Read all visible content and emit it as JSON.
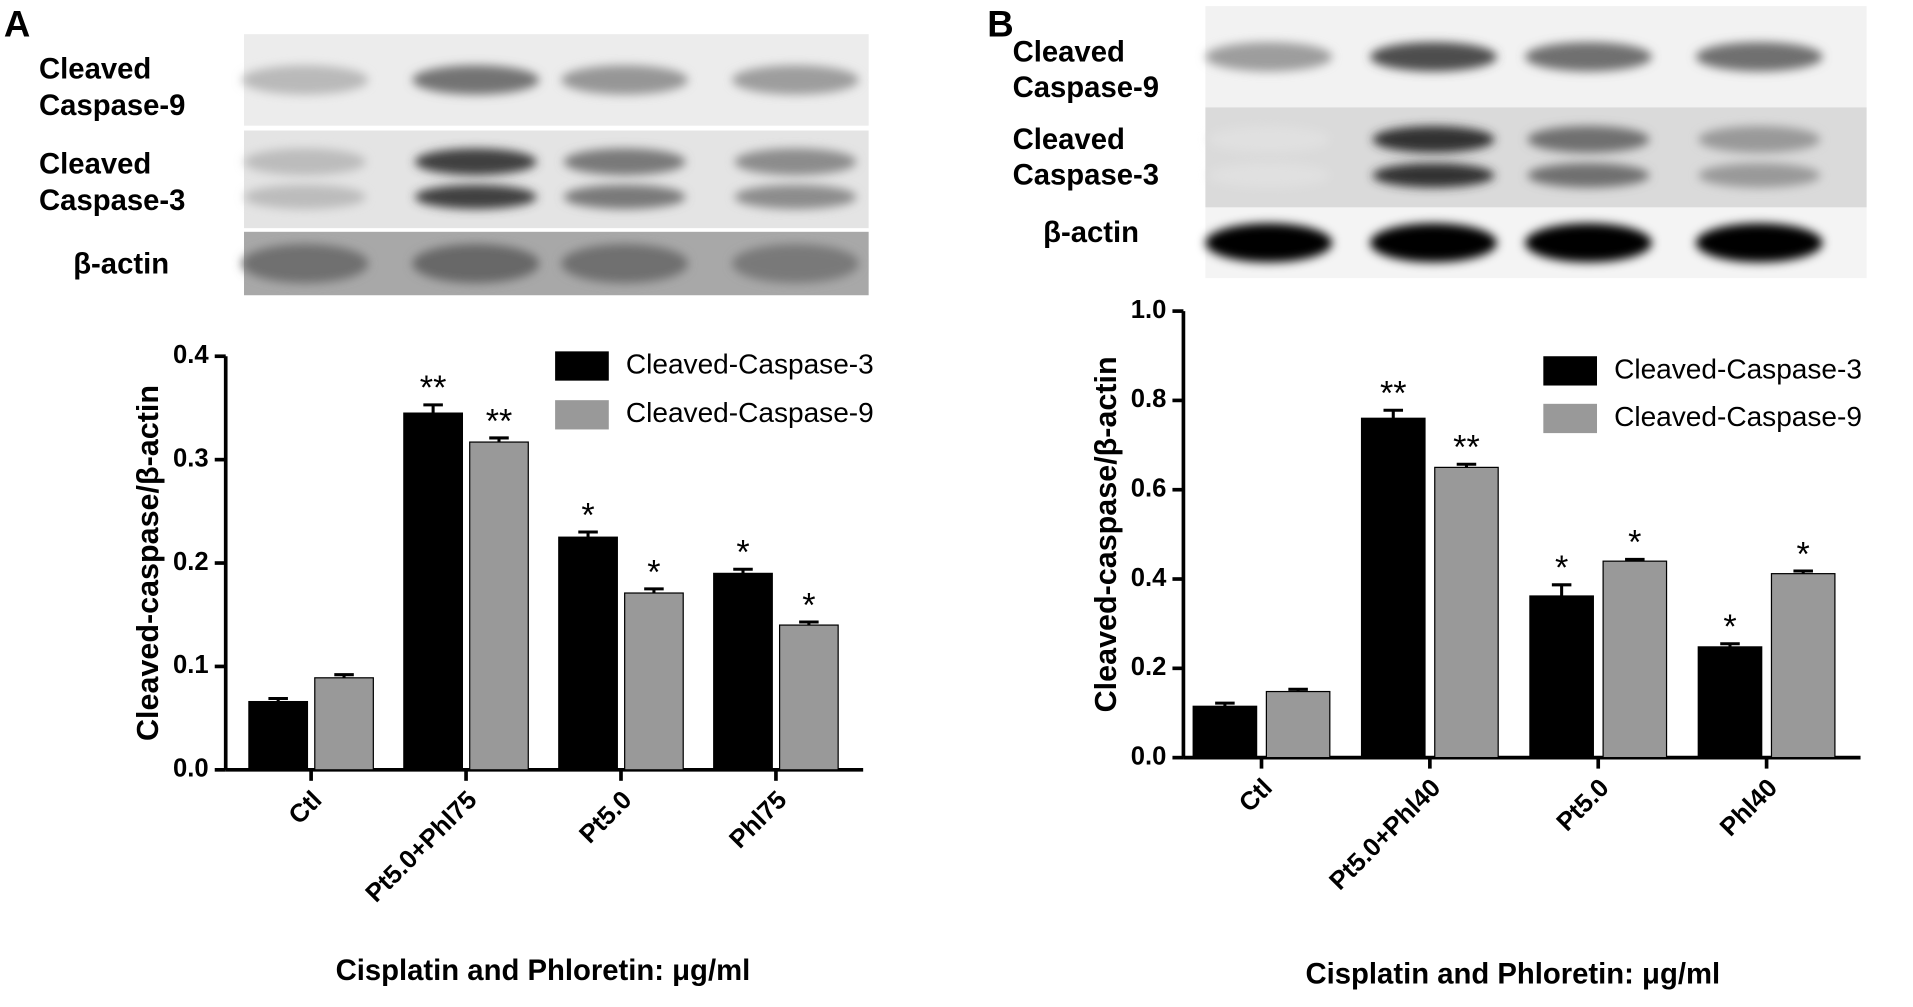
{
  "chart_data": [
    {
      "type": "bar",
      "panel_label": "A",
      "blot_labels": [
        [
          "Cleaved",
          "Caspase-9"
        ],
        [
          "Cleaved",
          "Caspase-3"
        ],
        [
          "β-actin"
        ]
      ],
      "y_label": "Cleaved-caspase/β-actin",
      "x_label": "Cisplatin and Phloretin: μg/ml",
      "categories": [
        "Ctl",
        "Pt5.0+Phl75",
        "Pt5.0",
        "Phl75"
      ],
      "ylim": [
        0,
        0.4
      ],
      "yticks": [
        {
          "value": 0,
          "label": "0.0"
        },
        0.1,
        0.2,
        0.3,
        0.4
      ],
      "legend": "upper right",
      "series": [
        {
          "name": "Cleaved-Caspase-3",
          "color": "#000000",
          "values": [
            0.066,
            0.345,
            0.225,
            0.19
          ],
          "errors": [
            0.003,
            0.008,
            0.005,
            0.004
          ],
          "annotations": [
            null,
            "**",
            "*",
            "*"
          ]
        },
        {
          "name": "Cleaved-Caspase-9",
          "color": "#999999",
          "values": [
            0.089,
            0.317,
            0.171,
            0.14
          ],
          "errors": [
            0.003,
            0.004,
            0.004,
            0.003
          ],
          "annotations": [
            null,
            "**",
            "*",
            "*"
          ]
        }
      ]
    },
    {
      "type": "bar",
      "panel_label": "B",
      "blot_labels": [
        [
          "Cleaved",
          "Caspase-9"
        ],
        [
          "Cleaved",
          "Caspase-3"
        ],
        [
          "β-actin"
        ]
      ],
      "y_label": "Cleaved-caspase/β-actin",
      "x_label": "Cisplatin and Phloretin: μg/ml",
      "categories": [
        "Ctl",
        "Pt5.0+Phl40",
        "Pt5.0",
        "Phl40"
      ],
      "ylim": [
        0,
        1
      ],
      "yticks": [
        {
          "value": 0,
          "label": "0.0"
        },
        0.2,
        0.4,
        0.6,
        0.8,
        {
          "value": 1,
          "label": "1.0"
        }
      ],
      "legend": "upper right",
      "series": [
        {
          "name": "Cleaved-Caspase-3",
          "color": "#000000",
          "values": [
            0.115,
            0.76,
            0.362,
            0.248
          ],
          "errors": [
            0.007,
            0.018,
            0.025,
            0.007
          ],
          "annotations": [
            null,
            "**",
            "*",
            "*"
          ]
        },
        {
          "name": "Cleaved-Caspase-9",
          "color": "#999999",
          "values": [
            0.148,
            0.65,
            0.44,
            0.412
          ],
          "errors": [
            0.005,
            0.007,
            0.004,
            0.006
          ],
          "annotations": [
            null,
            "**",
            "*",
            "*"
          ]
        }
      ]
    }
  ]
}
